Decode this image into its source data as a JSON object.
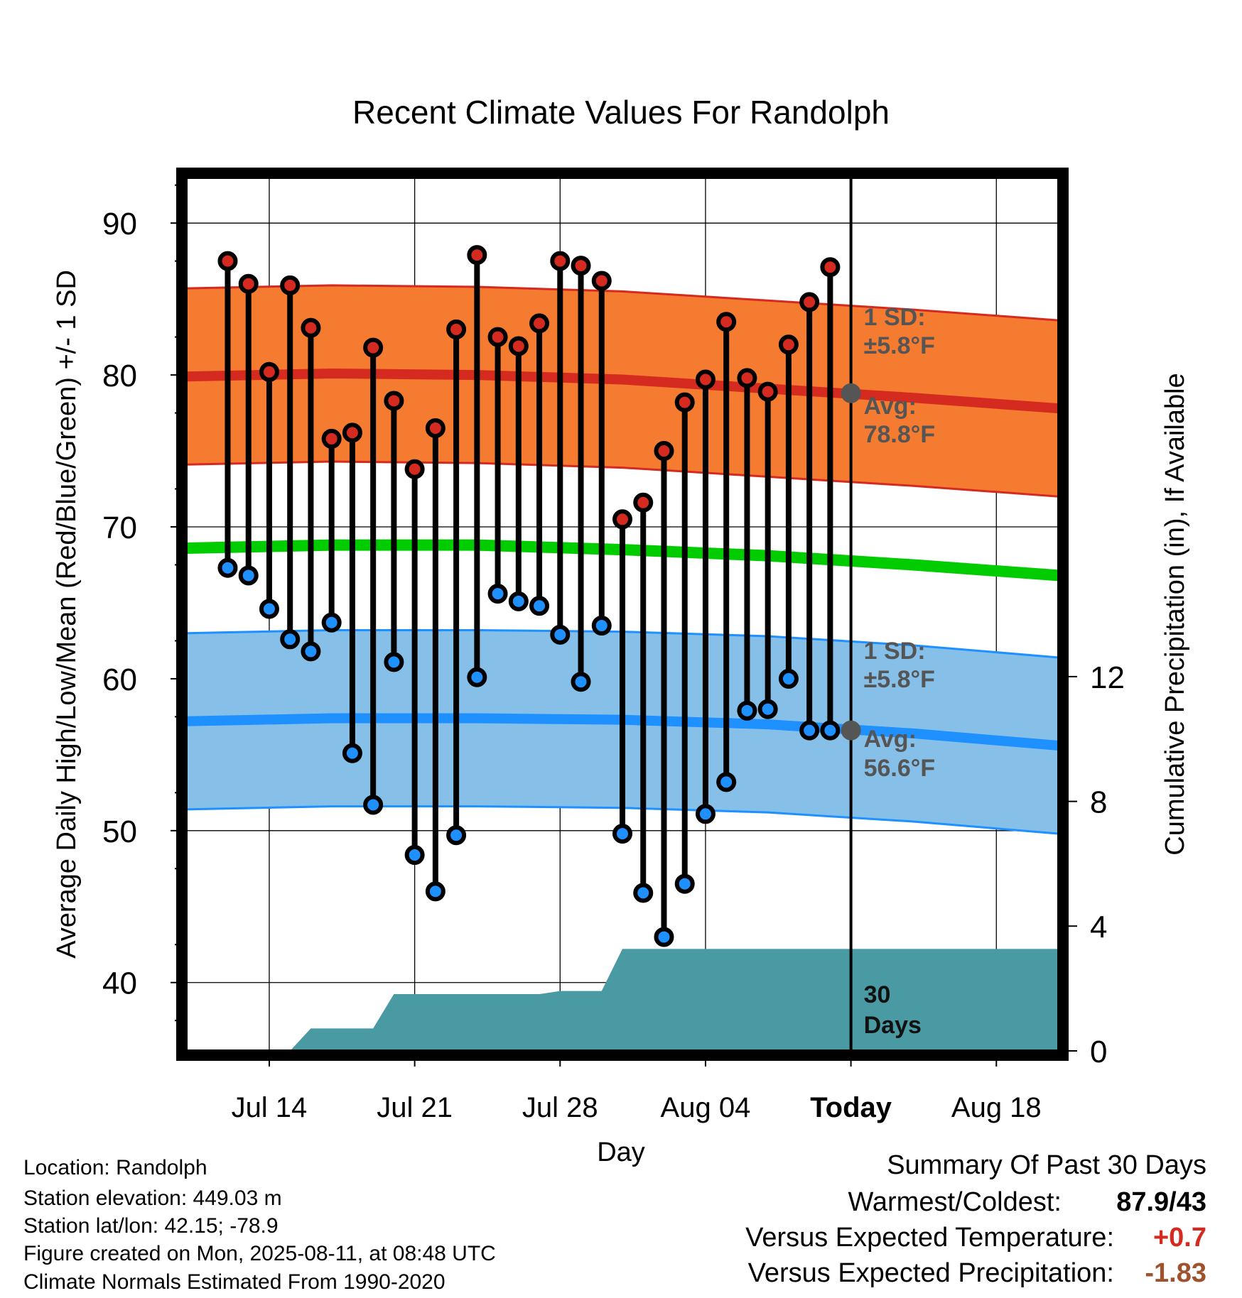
{
  "chart_data": {
    "type": "line",
    "title": "Recent Climate Values For Randolph",
    "xlabel": "Day",
    "ylabel": "Average Daily High/Low/Mean (Red/Blue/Green) +/- 1 SD",
    "y2label": "Cumulative Precipitation (in), If Available",
    "ylim": [
      35.5,
      93
    ],
    "yticks": [
      40,
      50,
      60,
      70,
      80,
      90
    ],
    "y2lim": [
      0,
      28
    ],
    "y2ticks": [
      0,
      4,
      8,
      12
    ],
    "xticks": [
      {
        "date": "2025-07-14",
        "label": "Jul 14"
      },
      {
        "date": "2025-07-21",
        "label": "Jul 21"
      },
      {
        "date": "2025-07-28",
        "label": "Jul 28"
      },
      {
        "date": "2025-08-04",
        "label": "Aug 04"
      },
      {
        "date": "2025-08-11",
        "label": "Today"
      },
      {
        "date": "2025-08-18",
        "label": "Aug 18"
      }
    ],
    "xlim": [
      "2025-07-10",
      "2025-08-21"
    ],
    "today": "2025-08-11",
    "grid": true,
    "days": [
      "2025-07-12",
      "2025-07-13",
      "2025-07-14",
      "2025-07-15",
      "2025-07-16",
      "2025-07-17",
      "2025-07-18",
      "2025-07-19",
      "2025-07-20",
      "2025-07-21",
      "2025-07-22",
      "2025-07-23",
      "2025-07-24",
      "2025-07-25",
      "2025-07-26",
      "2025-07-27",
      "2025-07-28",
      "2025-07-29",
      "2025-07-30",
      "2025-07-31",
      "2025-08-01",
      "2025-08-02",
      "2025-08-03",
      "2025-08-04",
      "2025-08-05",
      "2025-08-06",
      "2025-08-07",
      "2025-08-08",
      "2025-08-09",
      "2025-08-10"
    ],
    "series": [
      {
        "name": "High",
        "values": [
          87.5,
          86.0,
          80.2,
          85.9,
          83.1,
          75.8,
          76.2,
          81.8,
          78.3,
          73.8,
          76.5,
          83.0,
          87.9,
          82.5,
          81.9,
          83.4,
          87.5,
          87.2,
          86.2,
          70.5,
          71.6,
          75.0,
          78.2,
          79.7,
          83.5,
          79.8,
          78.9,
          82.0,
          84.8,
          87.1
        ]
      },
      {
        "name": "Low",
        "values": [
          67.3,
          66.8,
          64.6,
          62.6,
          61.8,
          63.7,
          55.1,
          51.7,
          61.1,
          48.4,
          46.0,
          49.7,
          60.1,
          65.6,
          65.1,
          64.8,
          62.9,
          59.8,
          63.5,
          49.8,
          45.9,
          43.0,
          46.5,
          51.1,
          53.2,
          57.9,
          58.0,
          60.0,
          56.6,
          56.6
        ]
      }
    ],
    "normals": {
      "dates": [
        "2025-07-10",
        "2025-07-17",
        "2025-07-24",
        "2025-07-31",
        "2025-08-07",
        "2025-08-14",
        "2025-08-21"
      ],
      "avg_high": [
        79.9,
        80.1,
        80.0,
        79.7,
        79.1,
        78.5,
        77.8
      ],
      "avg_high_sd": 5.8,
      "avg_low": [
        57.2,
        57.4,
        57.4,
        57.3,
        57.0,
        56.4,
        55.6
      ],
      "avg_low_sd": 5.8,
      "avg_mean": [
        68.6,
        68.8,
        68.8,
        68.5,
        68.1,
        67.5,
        66.8
      ]
    },
    "precip_cumulative": {
      "dates": [
        "2025-07-10",
        "2025-07-15",
        "2025-07-16",
        "2025-07-19",
        "2025-07-20",
        "2025-07-27",
        "2025-07-28",
        "2025-07-30",
        "2025-07-31",
        "2025-08-21"
      ],
      "values": [
        0,
        0,
        0.72,
        0.72,
        1.82,
        1.82,
        1.92,
        1.92,
        3.27,
        3.27
      ]
    },
    "annotations": {
      "high_sd": "1 SD:",
      "high_sd_value": "±5.8°F",
      "high_avg": "Avg:",
      "high_avg_value": "78.8°F",
      "high_avg_today": 78.8,
      "low_sd": "1 SD:",
      "low_sd_value": "±5.8°F",
      "low_avg": "Avg:",
      "low_avg_value": "56.6°F",
      "low_avg_today": 56.6,
      "period_line1": "30",
      "period_line2": "Days"
    },
    "colors": {
      "high_band": "#f47b30",
      "high_line": "#d42a20",
      "high_marker": "#d42a20",
      "low_band": "#86c0e8",
      "low_line": "#1e90ff",
      "low_marker": "#1e90ff",
      "mean_line": "#00cc00",
      "precip": "#4a9aa3",
      "annotation_text": "#555555"
    }
  },
  "info": {
    "location": "Location: Randolph",
    "elevation": "Station elevation: 449.03 m",
    "latlon": "Station lat/lon: 42.15; -78.9",
    "created": "Figure created on Mon, 2025-08-11, at 08:48 UTC",
    "normals": "Climate Normals Estimated From 1990-2020"
  },
  "summary": {
    "title": "Summary Of Past 30 Days",
    "warmest_label": "Warmest/Coldest:",
    "warmest_value": "87.9/43",
    "temp_label": "Versus Expected Temperature:",
    "temp_value": "+0.7",
    "temp_color": "#d42a20",
    "precip_label": "Versus Expected Precipitation:",
    "precip_value": "-1.83",
    "precip_color": "#a0522d"
  }
}
